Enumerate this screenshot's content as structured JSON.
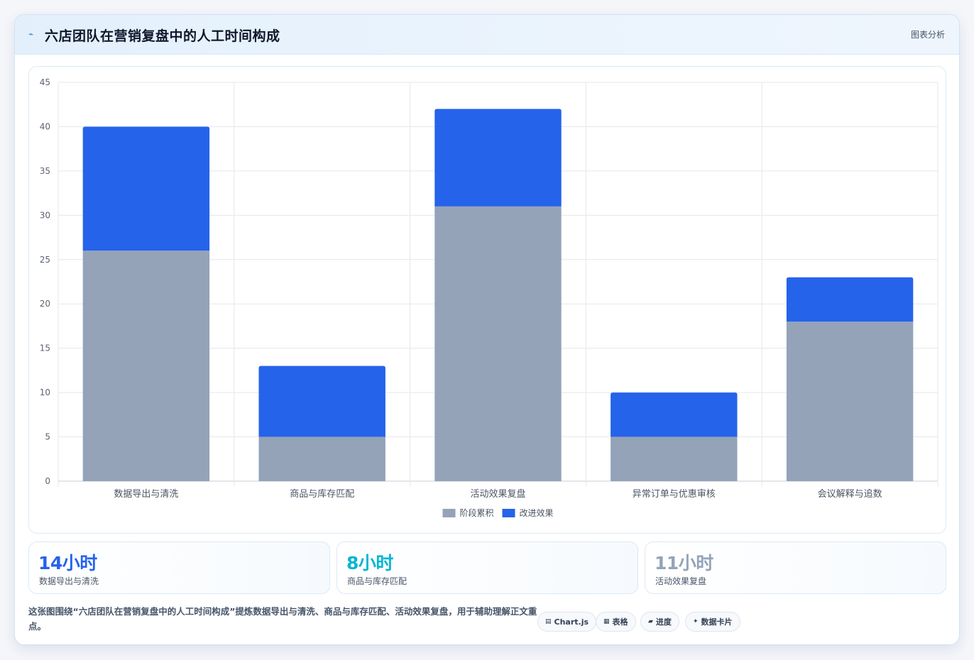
{
  "header": {
    "icon": "trend-icon",
    "title": "六店团队在营销复盘中的人工时间构成",
    "tag": "图表分析"
  },
  "chart_data": {
    "type": "bar",
    "stacked": true,
    "categories": [
      "数据导出与清洗",
      "商品与库存匹配",
      "活动效果复盘",
      "异常订单与优惠审核",
      "会议解释与追数"
    ],
    "series": [
      {
        "name": "阶段累积",
        "color": "#94a3b8",
        "values": [
          26,
          5,
          31,
          5,
          18
        ]
      },
      {
        "name": "改进效果",
        "color": "#2563eb",
        "values": [
          14,
          8,
          11,
          5,
          5
        ]
      }
    ],
    "title": "",
    "xlabel": "",
    "ylabel": "",
    "ylim": [
      0,
      45
    ],
    "yticks": [
      0,
      5,
      10,
      15,
      20,
      25,
      30,
      35,
      40,
      45
    ],
    "grid": true,
    "legend": "bottom"
  },
  "stats": [
    {
      "value": "14小时",
      "label": "数据导出与清洗",
      "color": "#2563eb"
    },
    {
      "value": "8小时",
      "label": "商品与库存匹配",
      "color": "#06b6d4"
    },
    {
      "value": "11小时",
      "label": "活动效果复盘",
      "color": "#94a3b8"
    }
  ],
  "note": "这张图围绕“六店团队在营销复盘中的人工时间构成”提炼数据导出与清洗、商品与库存匹配、活动效果复盘，用于辅助理解正文重点。",
  "chips": [
    {
      "icon": "▤",
      "label": "Chart.js"
    },
    {
      "icon": "▦",
      "label": "表格"
    },
    {
      "icon": "▰",
      "label": "进度"
    },
    {
      "icon": "✦",
      "label": "数据卡片"
    }
  ]
}
